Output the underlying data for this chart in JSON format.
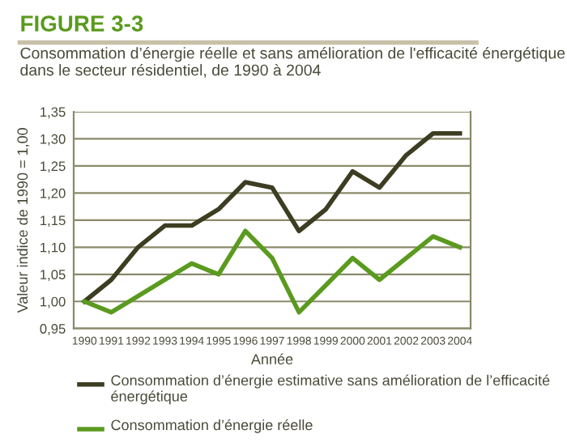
{
  "chart_data": {
    "type": "line",
    "title": "FIGURE 3-3",
    "subtitle": "Consommation d’énergie réelle et sans amélioration de l'efficacité énergétique dans le secteur résidentiel, de 1990 à 2004",
    "xlabel": "Année",
    "ylabel": "Valeur indice de 1990 = 1,00",
    "categories": [
      "1990",
      "1991",
      "1992",
      "1993",
      "1994",
      "1995",
      "1996",
      "1997",
      "1998",
      "1999",
      "2000",
      "2001",
      "2002",
      "2003",
      "2004"
    ],
    "series": [
      {
        "name": "Consommation d’énergie estimative sans amélioration de l’efficacité énergétique",
        "color": "#3d3d22",
        "values": [
          1.0,
          1.04,
          1.1,
          1.14,
          1.14,
          1.17,
          1.22,
          1.21,
          1.13,
          1.17,
          1.24,
          1.21,
          1.27,
          1.31,
          1.31
        ]
      },
      {
        "name": "Consommation d’énergie réelle",
        "color": "#5a9a1e",
        "values": [
          1.0,
          0.98,
          1.01,
          1.04,
          1.07,
          1.05,
          1.13,
          1.08,
          0.98,
          1.03,
          1.08,
          1.04,
          1.08,
          1.12,
          1.1
        ]
      }
    ],
    "ylim": [
      0.95,
      1.35
    ],
    "yticks": [
      {
        "value": 0.95,
        "label": "0,95"
      },
      {
        "value": 1.0,
        "label": "1,00"
      },
      {
        "value": 1.05,
        "label": "1,05"
      },
      {
        "value": 1.1,
        "label": "1,10"
      },
      {
        "value": 1.15,
        "label": "1,15"
      },
      {
        "value": 1.2,
        "label": "1,20"
      },
      {
        "value": 1.25,
        "label": "1,25"
      },
      {
        "value": 1.3,
        "label": "1,30"
      },
      {
        "value": 1.35,
        "label": "1,35"
      }
    ],
    "grid": "y",
    "legend": "bottom",
    "line_style": "solid"
  }
}
